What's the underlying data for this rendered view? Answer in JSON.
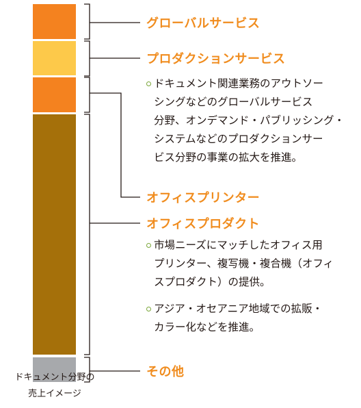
{
  "colors": {
    "accent": "#f08c1e",
    "bullet": "#7aa63a",
    "bracket": "#231815"
  },
  "segments": [
    {
      "name": "グローバルサービス",
      "color": "#f4821f"
    },
    {
      "name": "プロダクションサービス",
      "color": "#fdc94a"
    },
    {
      "name": "オフィスプリンター",
      "color": "#f4821f"
    },
    {
      "name": "オフィスプロダクト",
      "color": "#a5700a"
    },
    {
      "name": "その他",
      "color": "#a7a9ac"
    }
  ],
  "headings": {
    "global_services": "グローバルサービス",
    "production_services": "プロダクションサービス",
    "office_printer": "オフィスプリンター",
    "office_products": "オフィスプロダクト",
    "other": "その他"
  },
  "notes": {
    "services": [
      "ドキュメント関連業務のアウトソー",
      "シングなどのグローバルサービス",
      "分野、オンデマンド・パブリッシング・",
      "システムなどのプロダクションサー",
      "ビス分野の事業の拡大を推進。"
    ],
    "products_1": [
      "市場ニーズにマッチしたオフィス用",
      "プリンター、複写機・複合機（オフィ",
      "スプロダクト）の提供。"
    ],
    "products_2": [
      "アジア・オセアニア地域での拡販・",
      "カラー化などを推進。"
    ]
  },
  "caption": [
    "ドキュメント分野の",
    "売上イメージ"
  ]
}
